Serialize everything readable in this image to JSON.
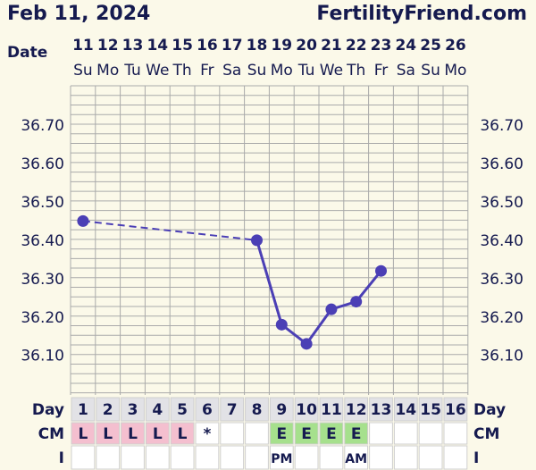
{
  "header": {
    "date": "Feb 11, 2024",
    "site": "FertilityFriend.com"
  },
  "labels": {
    "date_row": "Date",
    "day_row": "Day",
    "cm_row": "CM",
    "i_row": "I"
  },
  "colors": {
    "background": "#fbf9e9",
    "grid": "#aaaaaa",
    "line": "#4b3fb5",
    "text": "#151a4f",
    "cm_l": "#f4bfcf",
    "cm_e": "#a6e08d",
    "day_cell": "#e2e2e6",
    "blank_cell": "#ffffff"
  },
  "chart_data": {
    "type": "line",
    "x": [
      "11",
      "12",
      "13",
      "14",
      "15",
      "16",
      "17",
      "18",
      "19",
      "20",
      "21",
      "22",
      "23",
      "24",
      "25",
      "26"
    ],
    "weekdays": [
      "Su",
      "Mo",
      "Tu",
      "We",
      "Th",
      "Fr",
      "Sa",
      "Su",
      "Mo",
      "Tu",
      "We",
      "Th",
      "Fr",
      "Sa",
      "Su",
      "Mo"
    ],
    "cycle_days": [
      "1",
      "2",
      "3",
      "4",
      "5",
      "6",
      "7",
      "8",
      "9",
      "10",
      "11",
      "12",
      "13",
      "14",
      "15",
      "16"
    ],
    "series": [
      {
        "values": [
          36.45,
          null,
          null,
          null,
          null,
          null,
          null,
          36.4,
          36.18,
          36.13,
          36.22,
          36.24,
          36.32,
          null,
          null,
          null
        ]
      }
    ],
    "dashed_gap": true,
    "yticks": [
      "36.70",
      "36.60",
      "36.50",
      "36.40",
      "36.30",
      "36.20",
      "36.10"
    ],
    "ylim": [
      36.01,
      36.75
    ],
    "grid": true,
    "cm": [
      "L",
      "L",
      "L",
      "L",
      "L",
      "*",
      "",
      "",
      "E",
      "E",
      "E",
      "E",
      "",
      "",
      "",
      ""
    ],
    "intercourse": [
      "",
      "",
      "",
      "",
      "",
      "",
      "",
      "",
      "PM",
      "",
      "",
      "AM",
      "",
      "",
      "",
      ""
    ]
  }
}
